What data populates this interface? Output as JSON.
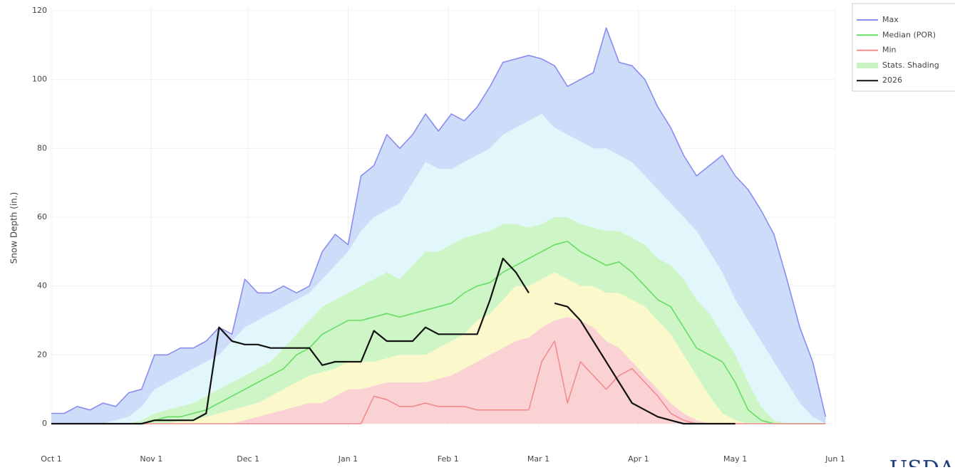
{
  "chart_data": {
    "type": "line",
    "y_label": "Snow Depth (in.)",
    "logo": "USDA",
    "x": [
      0,
      4,
      8,
      12,
      16,
      20,
      24,
      28,
      32,
      36,
      40,
      44,
      48,
      52,
      56,
      60,
      64,
      68,
      72,
      76,
      80,
      84,
      88,
      92,
      96,
      100,
      104,
      108,
      112,
      116,
      120,
      124,
      128,
      132,
      136,
      140,
      144,
      148,
      152,
      156,
      160,
      164,
      168,
      172,
      176,
      180,
      184,
      188,
      192,
      196,
      200,
      204,
      208,
      212,
      216,
      220,
      224,
      228,
      232,
      236,
      240
    ],
    "xlim": [
      0,
      243
    ],
    "xticks": [
      {
        "value": 0,
        "label": "Oct 1"
      },
      {
        "value": 31,
        "label": "Nov 1"
      },
      {
        "value": 61,
        "label": "Dec 1"
      },
      {
        "value": 92,
        "label": "Jan 1"
      },
      {
        "value": 123,
        "label": "Feb 1"
      },
      {
        "value": 151,
        "label": "Mar 1"
      },
      {
        "value": 182,
        "label": "Apr 1"
      },
      {
        "value": 212,
        "label": "May 1"
      },
      {
        "value": 243,
        "label": "Jun 1"
      }
    ],
    "ylim": [
      0,
      120
    ],
    "yticks": [
      0,
      20,
      40,
      60,
      80,
      100,
      120
    ],
    "grid": true,
    "legend": "top-right",
    "series": [
      {
        "name": "Max",
        "color": "#8c8cf0",
        "values": [
          3,
          3,
          5,
          4,
          6,
          5,
          9,
          10,
          20,
          20,
          22,
          22,
          24,
          28,
          26,
          42,
          38,
          38,
          40,
          38,
          40,
          50,
          55,
          52,
          72,
          75,
          84,
          80,
          84,
          90,
          85,
          90,
          88,
          92,
          98,
          105,
          106,
          107,
          106,
          104,
          98,
          100,
          102,
          115,
          105,
          104,
          100,
          92,
          86,
          78,
          72,
          75,
          78,
          72,
          68,
          62,
          55,
          42,
          28,
          18,
          2
        ]
      },
      {
        "name": "Median (POR)",
        "color": "#66dd66",
        "values": [
          0,
          0,
          0,
          0,
          0,
          0,
          0,
          0,
          1,
          2,
          2,
          3,
          4,
          6,
          8,
          10,
          12,
          14,
          16,
          20,
          22,
          26,
          28,
          30,
          30,
          31,
          32,
          31,
          32,
          33,
          34,
          35,
          38,
          40,
          41,
          44,
          46,
          48,
          50,
          52,
          53,
          50,
          48,
          46,
          47,
          44,
          40,
          36,
          34,
          28,
          22,
          20,
          18,
          12,
          4,
          1,
          0,
          0,
          0,
          0,
          0
        ]
      },
      {
        "name": "Min",
        "color": "#f28c8c",
        "values": [
          0,
          0,
          0,
          0,
          0,
          0,
          0,
          0,
          0,
          0,
          0,
          0,
          0,
          0,
          0,
          0,
          0,
          0,
          0,
          0,
          0,
          0,
          0,
          0,
          0,
          8,
          7,
          5,
          5,
          6,
          5,
          5,
          5,
          4,
          4,
          4,
          4,
          4,
          18,
          24,
          6,
          18,
          14,
          10,
          14,
          16,
          12,
          8,
          3,
          1,
          0,
          0,
          0,
          0,
          0,
          0,
          0,
          0,
          0,
          0,
          0
        ]
      },
      {
        "name": "Stats. Shading",
        "color": "#c8f2c0",
        "band_colors": [
          "#cddcf8",
          "#e2f7fb",
          "#cdf5c6",
          "#fbf8cc",
          "#fad2d4"
        ],
        "bands": [
          [
            0,
            0,
            0,
            0,
            0,
            1,
            2,
            5,
            10,
            12,
            14,
            16,
            18,
            20,
            24,
            28,
            30,
            32,
            34,
            36,
            38,
            42,
            46,
            50,
            56,
            60,
            62,
            64,
            70,
            76,
            74,
            74,
            76,
            78,
            80,
            84,
            86,
            88,
            90,
            86,
            84,
            82,
            80,
            80,
            78,
            76,
            72,
            68,
            64,
            60,
            56,
            50,
            44,
            36,
            30,
            24,
            18,
            12,
            6,
            2,
            0
          ],
          [
            0,
            0,
            0,
            0,
            0,
            0,
            0,
            1,
            3,
            4,
            5,
            6,
            8,
            10,
            12,
            14,
            16,
            18,
            22,
            26,
            30,
            34,
            36,
            38,
            40,
            42,
            44,
            42,
            46,
            50,
            50,
            52,
            54,
            55,
            56,
            58,
            58,
            57,
            58,
            60,
            60,
            58,
            57,
            56,
            56,
            54,
            52,
            48,
            46,
            42,
            36,
            32,
            26,
            20,
            12,
            5,
            1,
            0,
            0,
            0,
            0
          ],
          [
            0,
            0,
            0,
            0,
            0,
            0,
            0,
            0,
            0,
            0,
            1,
            1,
            2,
            3,
            4,
            5,
            6,
            8,
            10,
            12,
            14,
            15,
            16,
            18,
            18,
            18,
            19,
            20,
            20,
            20,
            22,
            24,
            26,
            30,
            32,
            36,
            40,
            40,
            42,
            44,
            42,
            40,
            40,
            38,
            38,
            36,
            34,
            30,
            26,
            20,
            14,
            8,
            3,
            1,
            0,
            0,
            0,
            0,
            0,
            0,
            0
          ],
          [
            0,
            0,
            0,
            0,
            0,
            0,
            0,
            0,
            0,
            0,
            0,
            0,
            0,
            0,
            0,
            1,
            2,
            3,
            4,
            5,
            6,
            6,
            8,
            10,
            10,
            11,
            12,
            12,
            12,
            12,
            13,
            14,
            16,
            18,
            20,
            22,
            24,
            25,
            28,
            30,
            31,
            30,
            28,
            24,
            22,
            18,
            14,
            10,
            6,
            3,
            1,
            0,
            0,
            0,
            0,
            0,
            0,
            0,
            0,
            0,
            0
          ]
        ]
      },
      {
        "name": "2026",
        "color": "#111111",
        "values": [
          0,
          0,
          0,
          0,
          0,
          0,
          0,
          0,
          1,
          1,
          1,
          1,
          3,
          28,
          24,
          23,
          23,
          22,
          22,
          22,
          22,
          17,
          18,
          18,
          18,
          27,
          24,
          24,
          24,
          28,
          26,
          26,
          26,
          26,
          36,
          48,
          44,
          38,
          null,
          35,
          34,
          30,
          24,
          18,
          12,
          6,
          4,
          2,
          1,
          0,
          0,
          0,
          0,
          0,
          null,
          null,
          null,
          null,
          null,
          null,
          null
        ]
      }
    ]
  }
}
